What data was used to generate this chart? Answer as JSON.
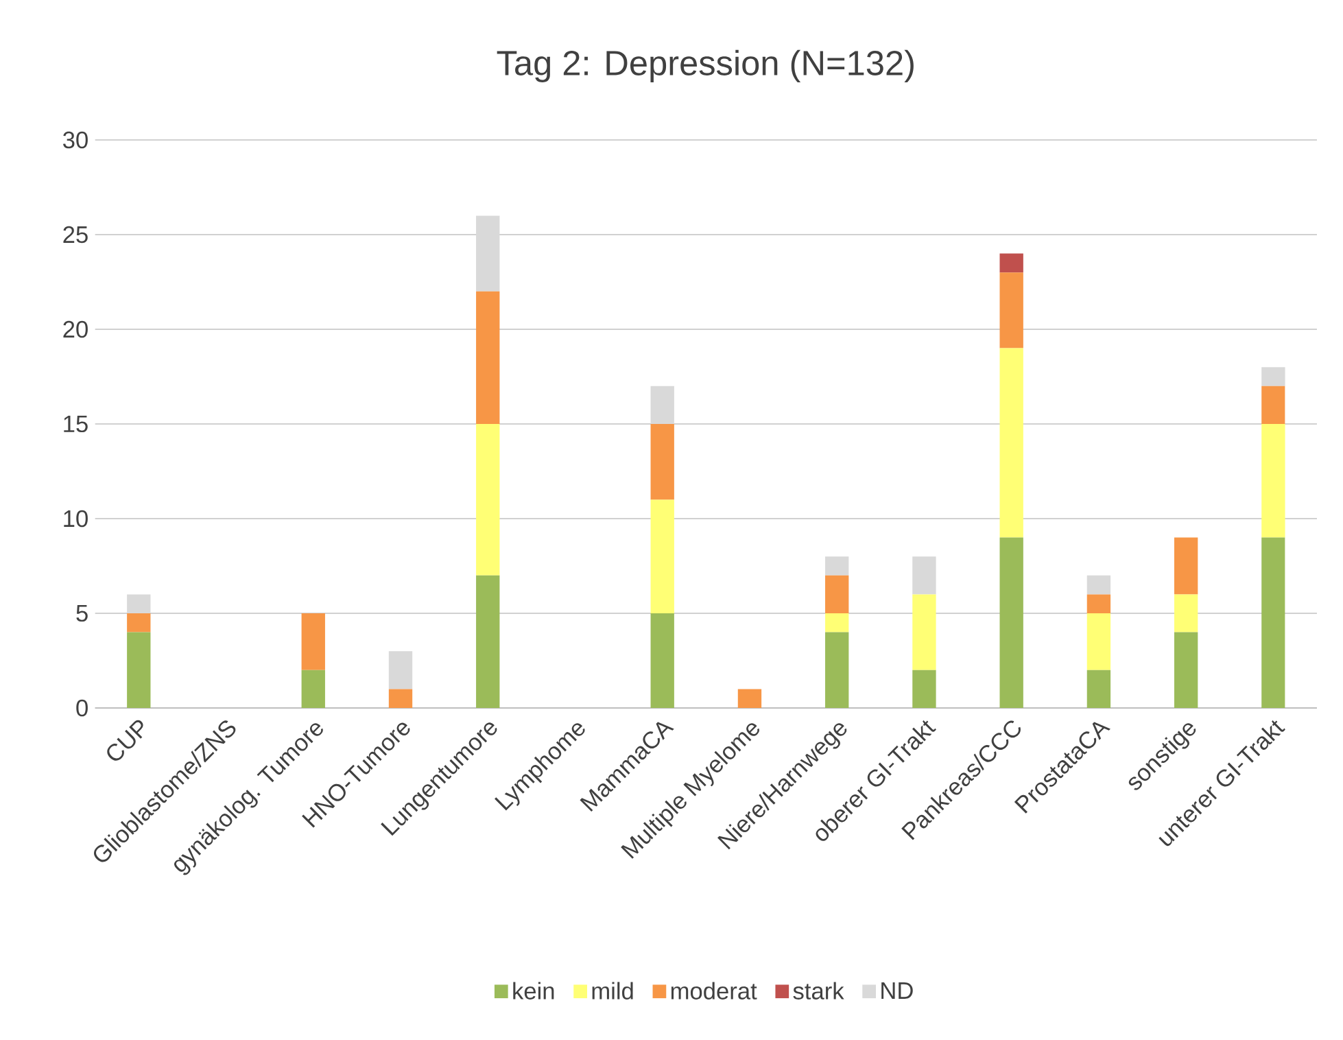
{
  "chart_data": {
    "type": "bar",
    "title": "Tag 2: Depression (N=132)",
    "stacked": true,
    "categories": [
      "CUP",
      "Glioblastome/ZNS",
      "gynäkolog. Tumore",
      "HNO-Tumore",
      "Lungentumore",
      "Lymphome",
      "MammaCA",
      "Multiple Myelome",
      "Niere/Harnwege",
      "oberer GI-Trakt",
      "Pankreas/CCC",
      "ProstataCA",
      "sonstige",
      "unterer GI-Trakt"
    ],
    "series": [
      {
        "name": "kein",
        "color": "#9bbb59",
        "values": [
          4,
          0,
          2,
          0,
          7,
          0,
          5,
          0,
          4,
          2,
          9,
          2,
          4,
          9
        ]
      },
      {
        "name": "mild",
        "color": "#ffff75",
        "values": [
          0,
          0,
          0,
          0,
          8,
          0,
          6,
          0,
          1,
          4,
          10,
          3,
          2,
          6
        ]
      },
      {
        "name": "moderat",
        "color": "#f79646",
        "values": [
          1,
          0,
          3,
          1,
          7,
          0,
          4,
          1,
          2,
          0,
          4,
          1,
          3,
          2
        ]
      },
      {
        "name": "stark",
        "color": "#c0504d",
        "values": [
          0,
          0,
          0,
          0,
          0,
          0,
          0,
          0,
          0,
          0,
          1,
          0,
          0,
          0
        ]
      },
      {
        "name": "ND",
        "color": "#d9d9d9",
        "values": [
          1,
          0,
          0,
          2,
          4,
          0,
          2,
          0,
          1,
          2,
          0,
          1,
          0,
          1
        ]
      }
    ],
    "ylim": [
      0,
      30
    ],
    "yticks": [
      0,
      5,
      10,
      15,
      20,
      25,
      30
    ],
    "grid": "y",
    "legend": "bottom"
  }
}
